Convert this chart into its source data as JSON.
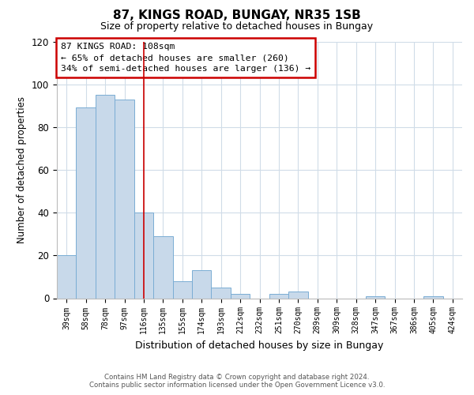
{
  "title": "87, KINGS ROAD, BUNGAY, NR35 1SB",
  "subtitle": "Size of property relative to detached houses in Bungay",
  "xlabel": "Distribution of detached houses by size in Bungay",
  "ylabel": "Number of detached properties",
  "categories": [
    "39sqm",
    "58sqm",
    "78sqm",
    "97sqm",
    "116sqm",
    "135sqm",
    "155sqm",
    "174sqm",
    "193sqm",
    "212sqm",
    "232sqm",
    "251sqm",
    "270sqm",
    "289sqm",
    "309sqm",
    "328sqm",
    "347sqm",
    "367sqm",
    "386sqm",
    "405sqm",
    "424sqm"
  ],
  "values": [
    20,
    89,
    95,
    93,
    40,
    29,
    8,
    13,
    5,
    2,
    0,
    2,
    3,
    0,
    0,
    0,
    1,
    0,
    0,
    1,
    0
  ],
  "bar_color": "#c8d9ea",
  "bar_edge_color": "#7aadd4",
  "marker_bar_index": 4,
  "marker_color": "#cc0000",
  "ylim": [
    0,
    120
  ],
  "yticks": [
    0,
    20,
    40,
    60,
    80,
    100,
    120
  ],
  "annotation_box_text": "87 KINGS ROAD: 108sqm\n← 65% of detached houses are smaller (260)\n34% of semi-detached houses are larger (136) →",
  "annotation_box_color": "#ffffff",
  "annotation_box_edge_color": "#cc0000",
  "footer_line1": "Contains HM Land Registry data © Crown copyright and database right 2024.",
  "footer_line2": "Contains public sector information licensed under the Open Government Licence v3.0.",
  "background_color": "#ffffff",
  "grid_color": "#d0dce8",
  "title_fontsize": 11,
  "subtitle_fontsize": 9,
  "ylabel_fontsize": 8.5,
  "xlabel_fontsize": 9
}
